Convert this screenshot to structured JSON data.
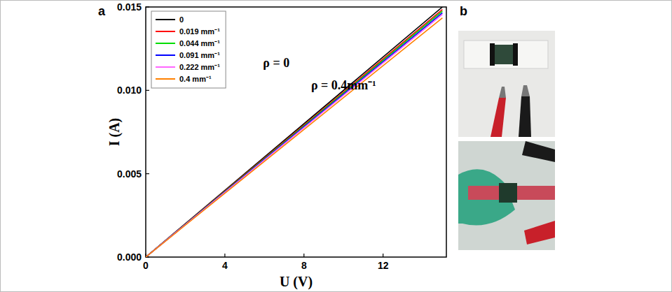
{
  "panel_labels": [
    "a",
    "b"
  ],
  "chart_data": {
    "type": "line",
    "x_label": "U (V)",
    "y_label": "I (A)",
    "x": [
      0,
      15
    ],
    "series": [
      {
        "name": "0",
        "color": "#000000",
        "values": [
          0,
          0.015
        ]
      },
      {
        "name": "0.019 mm⁻¹",
        "color": "#ff0000",
        "values": [
          0,
          0.01485
        ]
      },
      {
        "name": "0.044 mm⁻¹",
        "color": "#00dd00",
        "values": [
          0,
          0.01475
        ]
      },
      {
        "name": "0.091 mm⁻¹",
        "color": "#0000ff",
        "values": [
          0,
          0.01465
        ]
      },
      {
        "name": "0.222 mm⁻¹",
        "color": "#ff66ff",
        "values": [
          0,
          0.01455
        ]
      },
      {
        "name": "0.4 mm⁻¹",
        "color": "#ff8000",
        "values": [
          0,
          0.01435
        ]
      }
    ],
    "xlim": [
      0,
      15.2
    ],
    "xticks": [
      0,
      4,
      8,
      12
    ],
    "ylim": [
      0,
      0.015
    ],
    "yticks": [
      {
        "value": 0,
        "label": "0.000"
      },
      {
        "value": 0.005,
        "label": "0.005"
      },
      {
        "value": 0.01,
        "label": "0.010"
      },
      {
        "value": 0.015,
        "label": "0.015"
      }
    ],
    "annotations": [
      "ρ = 0",
      "ρ = 0.4mm⁻¹"
    ],
    "legend": "upper left",
    "grid": false
  }
}
